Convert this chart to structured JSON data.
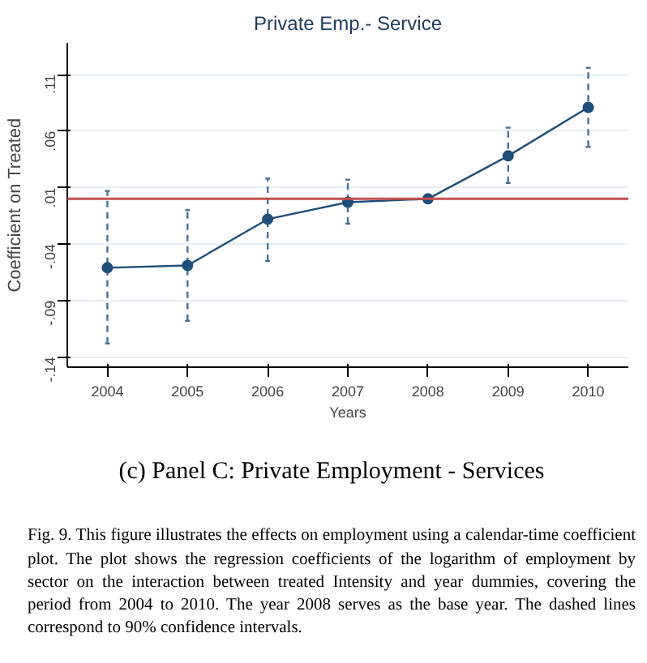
{
  "chart_data": {
    "type": "line",
    "title": "Private Emp.- Service",
    "xlabel": "Years",
    "ylabel": "Coefficient on Treated",
    "x": [
      2004,
      2005,
      2006,
      2007,
      2008,
      2009,
      2010
    ],
    "series": [
      {
        "color": "#1f4e79",
        "values": [
          -0.061,
          -0.059,
          -0.018,
          -0.003,
          0.0,
          0.038,
          0.081
        ],
        "errors": [
          [
            -0.128,
            0.007
          ],
          [
            -0.108,
            -0.01
          ],
          [
            -0.055,
            0.018
          ],
          [
            -0.022,
            0.017
          ],
          null,
          [
            0.014,
            0.063
          ],
          [
            0.046,
            0.116
          ]
        ]
      }
    ],
    "xlim": [
      2003.5,
      2010.5
    ],
    "ylim": [
      -0.149,
      0.138
    ],
    "xticks": [
      2004,
      2005,
      2006,
      2007,
      2008,
      2009,
      2010
    ],
    "yticks": [
      {
        "value": 0.11,
        "label": ".11"
      },
      {
        "value": 0.06,
        "label": ".06"
      },
      {
        "value": 0.01,
        "label": ".01"
      },
      {
        "value": -0.04,
        "label": "-.04"
      },
      {
        "value": -0.09,
        "label": "-.09"
      },
      {
        "value": -0.14,
        "label": "-.14"
      }
    ],
    "ref_lines": [
      {
        "axis": "y",
        "value": 0,
        "color": "#c0504d"
      }
    ],
    "grid": "y",
    "marker": "circle",
    "line_style": "solid",
    "annotations": [
      "(c) Panel C: Private Employment - Services",
      "Fig. 9. This figure illustrates the effects on employment using a calendar-time coefficient plot. The plot shows the regression coefficients of the logarithm of employment by sector on the interaction between treated Intensity and year dummies, covering the period from 2004 to 2010. The year 2008 serves as the base year. The dashed lines correspond to 90% confidence intervals."
    ]
  }
}
